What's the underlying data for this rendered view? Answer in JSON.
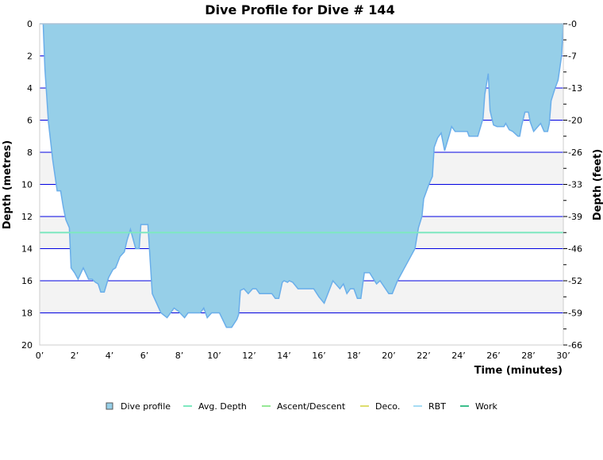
{
  "chart_data": {
    "type": "area",
    "title": "Dive Profile for Dive # 144",
    "xlabel": "Time (minutes)",
    "ylabel": "Depth (metres)",
    "ylabel_right": "Depth (feet)",
    "xlim": [
      0,
      30
    ],
    "ylim": [
      0,
      20
    ],
    "x_ticks": [
      0,
      2,
      4,
      6,
      8,
      10,
      12,
      14,
      16,
      18,
      20,
      22,
      24,
      26,
      28,
      30
    ],
    "x_tick_labels": [
      "0’",
      "2’",
      "4’",
      "6’",
      "8’",
      "10’",
      "12’",
      "14’",
      "16’",
      "18’",
      "20’",
      "22’",
      "24’",
      "26’",
      "28’",
      "30’"
    ],
    "y_ticks": [
      0,
      2,
      4,
      6,
      8,
      10,
      12,
      14,
      16,
      18,
      20
    ],
    "y_tick_labels": [
      "0",
      "2",
      "4",
      "6",
      "8",
      "10",
      "12",
      "14",
      "16",
      "18",
      "20"
    ],
    "y_right_tick_labels": [
      "0",
      "7",
      "13",
      "20",
      "26",
      "33",
      "39",
      "46",
      "52",
      "59",
      "66"
    ],
    "grid": true,
    "avg_depth": 13.0,
    "legend_position": "bottom",
    "legend": [
      {
        "label": "Dive profile",
        "color": "#96cfe8",
        "kind": "box"
      },
      {
        "label": "Avg. Depth",
        "color": "#7ee8c0",
        "kind": "line"
      },
      {
        "label": "Ascent/Descent",
        "color": "#96e896",
        "kind": "line"
      },
      {
        "label": "Deco.",
        "color": "#dede6e",
        "kind": "line"
      },
      {
        "label": "RBT",
        "color": "#a6dcf4",
        "kind": "line"
      },
      {
        "label": "Work",
        "color": "#3cbf8c",
        "kind": "line"
      }
    ],
    "series": [
      {
        "name": "Dive profile",
        "points": [
          [
            0,
            0
          ],
          [
            0.2,
            0
          ],
          [
            0.3,
            2.8
          ],
          [
            0.5,
            6.1
          ],
          [
            0.75,
            8.5
          ],
          [
            0.95,
            10.0
          ],
          [
            1.0,
            10.4
          ],
          [
            1.2,
            10.4
          ],
          [
            1.35,
            11.4
          ],
          [
            1.5,
            12.2
          ],
          [
            1.7,
            12.7
          ],
          [
            1.8,
            15.2
          ],
          [
            2.0,
            15.5
          ],
          [
            2.2,
            15.9
          ],
          [
            2.5,
            15.2
          ],
          [
            2.8,
            15.9
          ],
          [
            3.0,
            15.9
          ],
          [
            3.2,
            16.1
          ],
          [
            3.35,
            16.2
          ],
          [
            3.5,
            16.7
          ],
          [
            3.7,
            16.7
          ],
          [
            3.95,
            15.8
          ],
          [
            4.2,
            15.3
          ],
          [
            4.35,
            15.2
          ],
          [
            4.6,
            14.5
          ],
          [
            4.85,
            14.2
          ],
          [
            5.0,
            13.5
          ],
          [
            5.2,
            12.8
          ],
          [
            5.5,
            14.0
          ],
          [
            5.7,
            14.0
          ],
          [
            5.8,
            12.5
          ],
          [
            6.2,
            12.5
          ],
          [
            6.45,
            16.8
          ],
          [
            6.7,
            17.4
          ],
          [
            6.95,
            18.0
          ],
          [
            7.3,
            18.3
          ],
          [
            7.7,
            17.7
          ],
          [
            7.95,
            17.9
          ],
          [
            8.3,
            18.3
          ],
          [
            8.5,
            18.0
          ],
          [
            9.2,
            18.0
          ],
          [
            9.4,
            17.7
          ],
          [
            9.6,
            18.3
          ],
          [
            9.85,
            18.0
          ],
          [
            10.3,
            18.0
          ],
          [
            10.7,
            18.9
          ],
          [
            11.0,
            18.9
          ],
          [
            11.3,
            18.4
          ],
          [
            11.4,
            18.1
          ],
          [
            11.5,
            16.6
          ],
          [
            11.7,
            16.5
          ],
          [
            11.95,
            16.8
          ],
          [
            12.2,
            16.5
          ],
          [
            12.4,
            16.5
          ],
          [
            12.6,
            16.8
          ],
          [
            13.3,
            16.8
          ],
          [
            13.5,
            17.1
          ],
          [
            13.7,
            17.1
          ],
          [
            13.9,
            16.1
          ],
          [
            14.0,
            16.0
          ],
          [
            14.2,
            16.1
          ],
          [
            14.3,
            16.0
          ],
          [
            14.5,
            16.1
          ],
          [
            14.8,
            16.5
          ],
          [
            15.7,
            16.5
          ],
          [
            16.0,
            17.0
          ],
          [
            16.3,
            17.4
          ],
          [
            16.8,
            16.0
          ],
          [
            17.2,
            16.5
          ],
          [
            17.4,
            16.2
          ],
          [
            17.6,
            16.8
          ],
          [
            17.8,
            16.5
          ],
          [
            18.0,
            16.5
          ],
          [
            18.2,
            17.1
          ],
          [
            18.4,
            17.1
          ],
          [
            18.6,
            15.5
          ],
          [
            18.9,
            15.5
          ],
          [
            19.3,
            16.2
          ],
          [
            19.5,
            16.0
          ],
          [
            20.0,
            16.8
          ],
          [
            20.2,
            16.8
          ],
          [
            20.5,
            16.0
          ],
          [
            20.9,
            15.2
          ],
          [
            21.5,
            14.0
          ],
          [
            21.7,
            12.7
          ],
          [
            21.9,
            12.0
          ],
          [
            22.0,
            10.9
          ],
          [
            22.3,
            10.0
          ],
          [
            22.5,
            9.5
          ],
          [
            22.6,
            7.7
          ],
          [
            22.8,
            7.1
          ],
          [
            23.0,
            6.8
          ],
          [
            23.2,
            7.9
          ],
          [
            23.5,
            6.8
          ],
          [
            23.6,
            6.4
          ],
          [
            23.8,
            6.7
          ],
          [
            24.5,
            6.7
          ],
          [
            24.6,
            7.0
          ],
          [
            25.1,
            7.0
          ],
          [
            25.4,
            5.9
          ],
          [
            25.5,
            4.4
          ],
          [
            25.7,
            3.1
          ],
          [
            25.8,
            5.4
          ],
          [
            26.0,
            6.3
          ],
          [
            26.2,
            6.4
          ],
          [
            26.6,
            6.4
          ],
          [
            26.7,
            6.2
          ],
          [
            26.9,
            6.6
          ],
          [
            27.1,
            6.7
          ],
          [
            27.4,
            7.0
          ],
          [
            27.5,
            7.0
          ],
          [
            27.6,
            6.4
          ],
          [
            27.8,
            5.5
          ],
          [
            28.0,
            5.5
          ],
          [
            28.1,
            6.1
          ],
          [
            28.3,
            6.7
          ],
          [
            28.7,
            6.2
          ],
          [
            28.9,
            6.7
          ],
          [
            29.1,
            6.7
          ],
          [
            29.2,
            6.2
          ],
          [
            29.3,
            4.8
          ],
          [
            29.5,
            4.1
          ],
          [
            29.7,
            3.5
          ],
          [
            29.9,
            2.0
          ],
          [
            30,
            0
          ]
        ]
      }
    ]
  }
}
